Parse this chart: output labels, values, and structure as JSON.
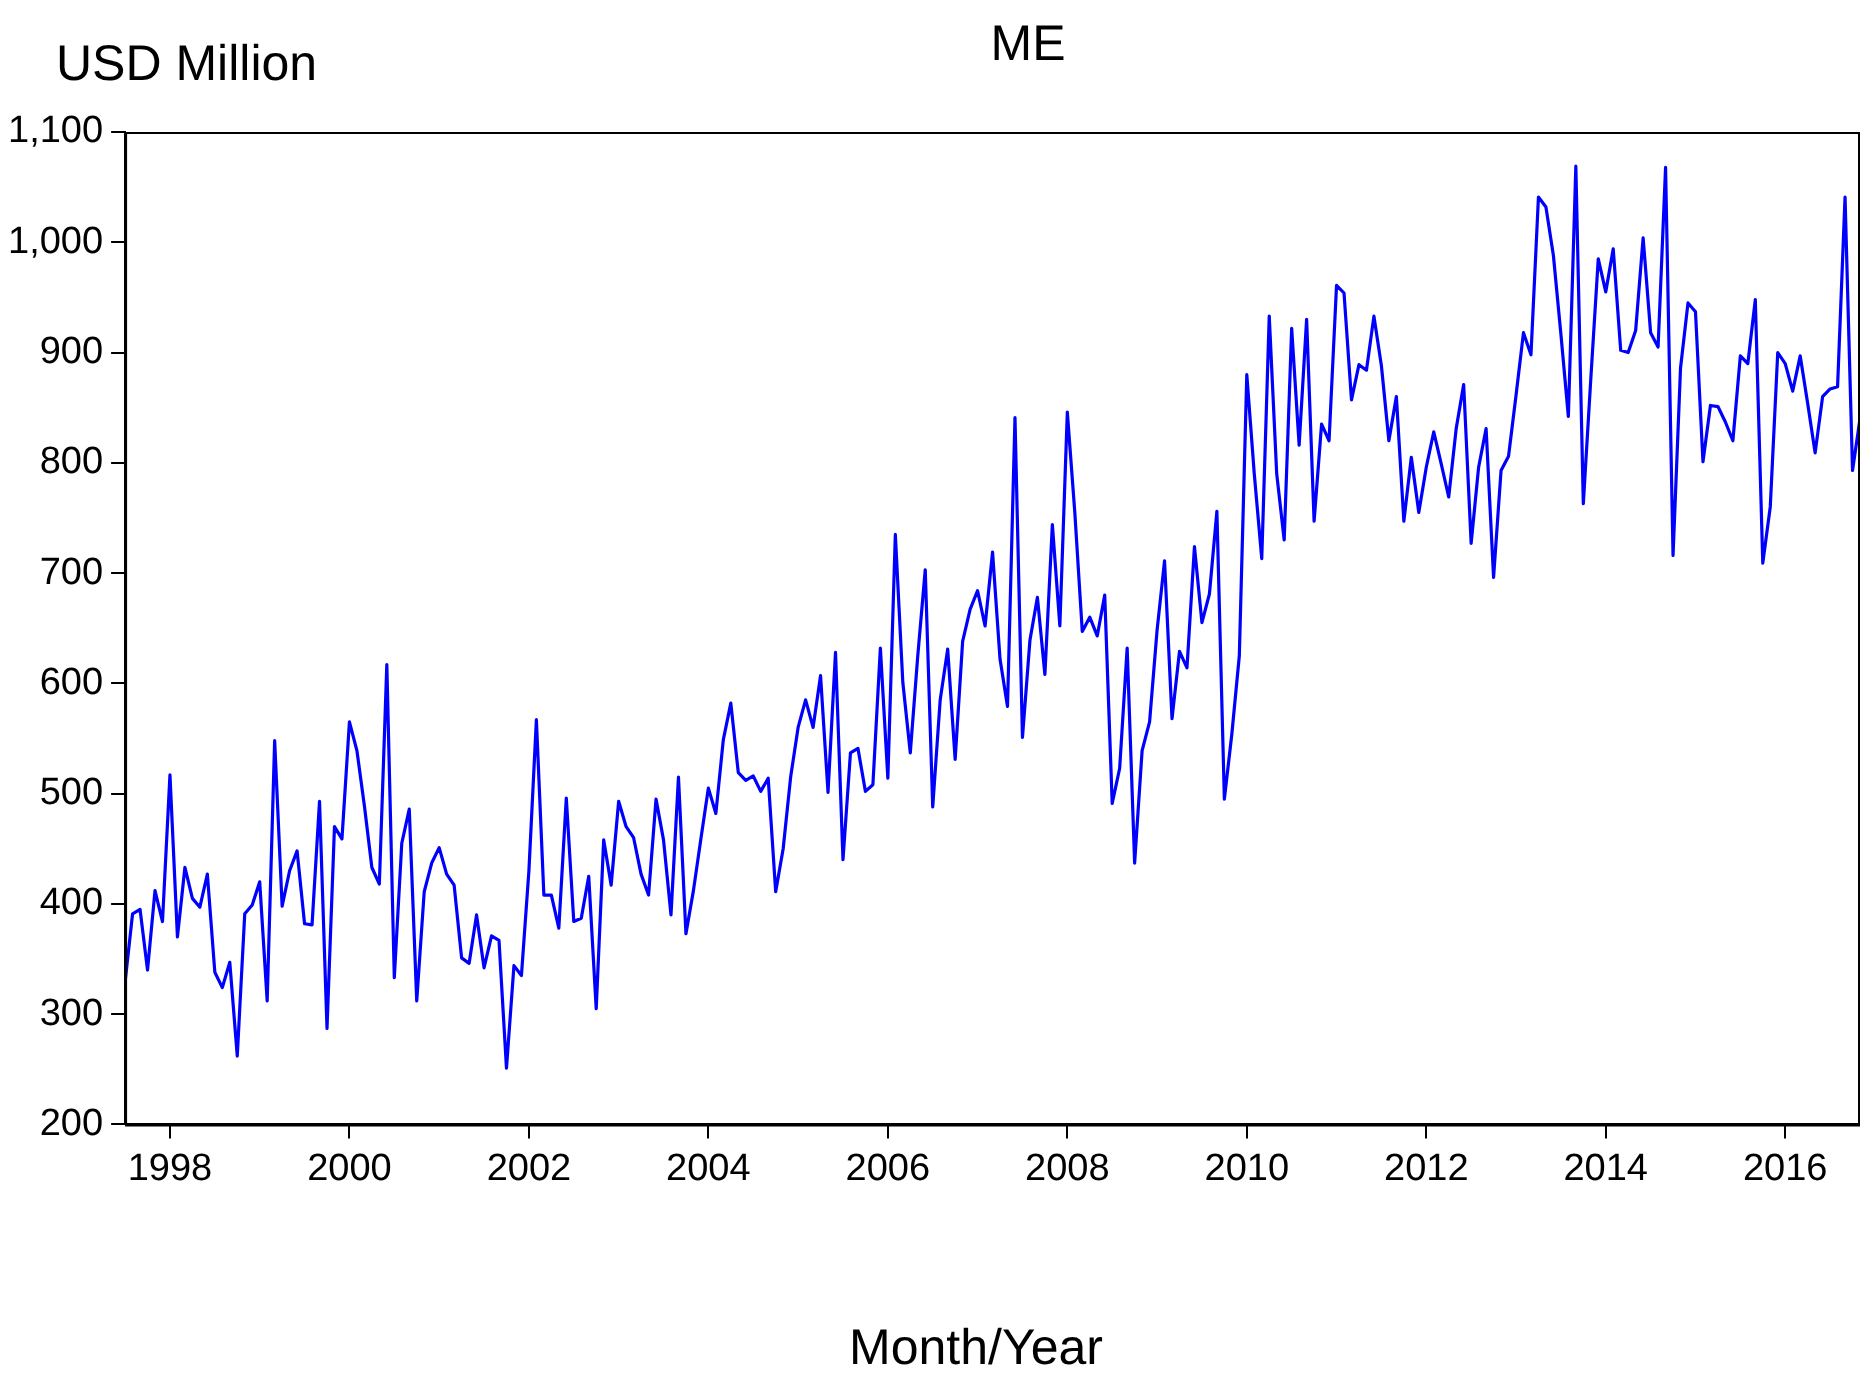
{
  "chart_data": {
    "type": "line",
    "title": "ME",
    "ylabel": "USD Million",
    "xlabel": "Month/Year",
    "legend": false,
    "marker": "none",
    "xlim": [
      "1998-01",
      "2017-05"
    ],
    "xticks": [
      {
        "value": "1998-07",
        "label": "1998"
      },
      {
        "value": "2000-07",
        "label": "2000"
      },
      {
        "value": "2002-07",
        "label": "2002"
      },
      {
        "value": "2004-07",
        "label": "2004"
      },
      {
        "value": "2006-07",
        "label": "2006"
      },
      {
        "value": "2008-07",
        "label": "2008"
      },
      {
        "value": "2010-07",
        "label": "2010"
      },
      {
        "value": "2012-07",
        "label": "2012"
      },
      {
        "value": "2014-07",
        "label": "2014"
      },
      {
        "value": "2016-07",
        "label": "2016"
      }
    ],
    "ylim": [
      200,
      1100
    ],
    "yticks": [
      200,
      300,
      400,
      500,
      600,
      700,
      800,
      900,
      {
        "value": 1000,
        "label": "1,000"
      },
      {
        "value": 1100,
        "label": "1,100"
      }
    ],
    "x": [
      "1998-01",
      "1998-02",
      "1998-03",
      "1998-04",
      "1998-05",
      "1998-06",
      "1998-07",
      "1998-08",
      "1998-09",
      "1998-10",
      "1998-11",
      "1998-12",
      "1999-01",
      "1999-02",
      "1999-03",
      "1999-04",
      "1999-05",
      "1999-06",
      "1999-07",
      "1999-08",
      "1999-09",
      "1999-10",
      "1999-11",
      "1999-12",
      "2000-01",
      "2000-02",
      "2000-03",
      "2000-04",
      "2000-05",
      "2000-06",
      "2000-07",
      "2000-08",
      "2000-09",
      "2000-10",
      "2000-11",
      "2000-12",
      "2001-01",
      "2001-02",
      "2001-03",
      "2001-04",
      "2001-05",
      "2001-06",
      "2001-07",
      "2001-08",
      "2001-09",
      "2001-10",
      "2001-11",
      "2001-12",
      "2002-01",
      "2002-02",
      "2002-03",
      "2002-04",
      "2002-05",
      "2002-06",
      "2002-07",
      "2002-08",
      "2002-09",
      "2002-10",
      "2002-11",
      "2002-12",
      "2003-01",
      "2003-02",
      "2003-03",
      "2003-04",
      "2003-05",
      "2003-06",
      "2003-07",
      "2003-08",
      "2003-09",
      "2003-10",
      "2003-11",
      "2003-12",
      "2004-01",
      "2004-02",
      "2004-03",
      "2004-04",
      "2004-05",
      "2004-06",
      "2004-07",
      "2004-08",
      "2004-09",
      "2004-10",
      "2004-11",
      "2004-12",
      "2005-01",
      "2005-02",
      "2005-03",
      "2005-04",
      "2005-05",
      "2005-06",
      "2005-07",
      "2005-08",
      "2005-09",
      "2005-10",
      "2005-11",
      "2005-12",
      "2006-01",
      "2006-02",
      "2006-03",
      "2006-04",
      "2006-05",
      "2006-06",
      "2006-07",
      "2006-08",
      "2006-09",
      "2006-10",
      "2006-11",
      "2006-12",
      "2007-01",
      "2007-02",
      "2007-03",
      "2007-04",
      "2007-05",
      "2007-06",
      "2007-07",
      "2007-08",
      "2007-09",
      "2007-10",
      "2007-11",
      "2007-12",
      "2008-01",
      "2008-02",
      "2008-03",
      "2008-04",
      "2008-05",
      "2008-06",
      "2008-07",
      "2008-08",
      "2008-09",
      "2008-10",
      "2008-11",
      "2008-12",
      "2009-01",
      "2009-02",
      "2009-03",
      "2009-04",
      "2009-05",
      "2009-06",
      "2009-07",
      "2009-08",
      "2009-09",
      "2009-10",
      "2009-11",
      "2009-12",
      "2010-01",
      "2010-02",
      "2010-03",
      "2010-04",
      "2010-05",
      "2010-06",
      "2010-07",
      "2010-08",
      "2010-09",
      "2010-10",
      "2010-11",
      "2010-12",
      "2011-01",
      "2011-02",
      "2011-03",
      "2011-04",
      "2011-05",
      "2011-06",
      "2011-07",
      "2011-08",
      "2011-09",
      "2011-10",
      "2011-11",
      "2011-12",
      "2012-01",
      "2012-02",
      "2012-03",
      "2012-04",
      "2012-05",
      "2012-06",
      "2012-07",
      "2012-08",
      "2012-09",
      "2012-10",
      "2012-11",
      "2012-12",
      "2013-01",
      "2013-02",
      "2013-03",
      "2013-04",
      "2013-05",
      "2013-06",
      "2013-07",
      "2013-08",
      "2013-09",
      "2013-10",
      "2013-11",
      "2013-12",
      "2014-01",
      "2014-02",
      "2014-03",
      "2014-04",
      "2014-05",
      "2014-06",
      "2014-07",
      "2014-08",
      "2014-09",
      "2014-10",
      "2014-11",
      "2014-12",
      "2015-01",
      "2015-02",
      "2015-03",
      "2015-04",
      "2015-05",
      "2015-06",
      "2015-07",
      "2015-08",
      "2015-09",
      "2015-10",
      "2015-11",
      "2015-12",
      "2016-01",
      "2016-02",
      "2016-03",
      "2016-04",
      "2016-05",
      "2016-06",
      "2016-07",
      "2016-08",
      "2016-09",
      "2016-10",
      "2016-11",
      "2016-12",
      "2017-01",
      "2017-02",
      "2017-03",
      "2017-04",
      "2017-05"
    ],
    "series": [
      {
        "color": "#0000ff",
        "values": [
          329,
          391,
          395,
          340,
          412,
          384,
          517,
          370,
          433,
          405,
          397,
          427,
          338,
          324,
          347,
          262,
          391,
          399,
          420,
          312,
          548,
          398,
          430,
          448,
          382,
          381,
          493,
          287,
          470,
          459,
          565,
          539,
          489,
          433,
          418,
          617,
          333,
          455,
          486,
          312,
          411,
          437,
          451,
          427,
          417,
          351,
          346,
          390,
          342,
          371,
          367,
          251,
          344,
          335,
          430,
          567,
          408,
          408,
          378,
          496,
          384,
          387,
          425,
          305,
          458,
          417,
          493,
          470,
          460,
          427,
          408,
          495,
          458,
          390,
          515,
          373,
          412,
          459,
          505,
          482,
          549,
          582,
          519,
          512,
          516,
          502,
          514,
          411,
          450,
          515,
          560,
          585,
          560,
          607,
          501,
          628,
          440,
          537,
          541,
          502,
          508,
          632,
          514,
          735,
          601,
          537,
          625,
          703,
          488,
          585,
          631,
          531,
          638,
          667,
          684,
          652,
          719,
          622,
          579,
          841,
          551,
          639,
          678,
          608,
          744,
          652,
          846,
          755,
          647,
          660,
          643,
          680,
          491,
          523,
          632,
          437,
          539,
          565,
          648,
          711,
          568,
          629,
          614,
          724,
          655,
          681,
          756,
          495,
          554,
          625,
          880,
          790,
          713,
          933,
          790,
          730,
          922,
          816,
          930,
          747,
          835,
          820,
          961,
          954,
          857,
          889,
          884,
          933,
          888,
          820,
          860,
          747,
          805,
          755,
          796,
          828,
          799,
          769,
          831,
          871,
          727,
          796,
          831,
          696,
          793,
          806,
          861,
          918,
          898,
          1041,
          1032,
          988,
          917,
          842,
          1069,
          763,
          876,
          985,
          955,
          994,
          902,
          900,
          920,
          1004,
          918,
          905,
          1068,
          716,
          886,
          945,
          937,
          801,
          852,
          851,
          837,
          820,
          897,
          890,
          948,
          709,
          760,
          900,
          890,
          865,
          897,
          854,
          809,
          860,
          867,
          869,
          1041,
          793,
          840
        ]
      }
    ]
  }
}
